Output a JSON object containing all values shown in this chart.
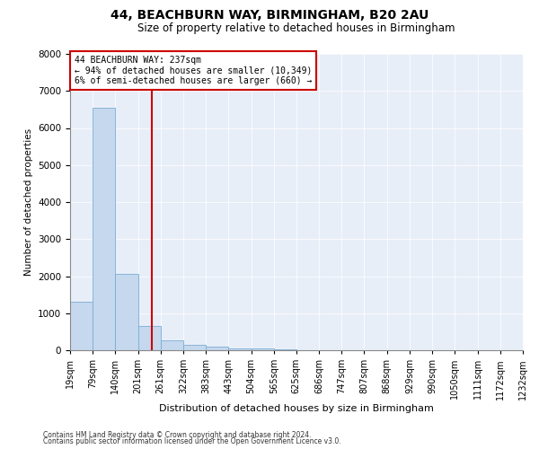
{
  "title": "44, BEACHBURN WAY, BIRMINGHAM, B20 2AU",
  "subtitle": "Size of property relative to detached houses in Birmingham",
  "xlabel": "Distribution of detached houses by size in Birmingham",
  "ylabel": "Number of detached properties",
  "annotation_line1": "44 BEACHBURN WAY: 237sqm",
  "annotation_line2": "← 94% of detached houses are smaller (10,349)",
  "annotation_line3": "6% of semi-detached houses are larger (660) →",
  "footer1": "Contains HM Land Registry data © Crown copyright and database right 2024.",
  "footer2": "Contains public sector information licensed under the Open Government Licence v3.0.",
  "bin_edges": [
    19,
    79,
    140,
    201,
    261,
    322,
    383,
    443,
    504,
    565,
    625,
    686,
    747,
    807,
    868,
    929,
    990,
    1050,
    1111,
    1172,
    1232
  ],
  "bar_heights": [
    1300,
    6550,
    2070,
    650,
    270,
    150,
    100,
    60,
    50,
    20,
    10,
    5,
    3,
    2,
    1,
    1,
    0,
    0,
    0,
    0
  ],
  "bar_color": "#c5d8ed",
  "bar_edge_color": "#7aaed6",
  "property_size": 237,
  "vline_color": "#cc0000",
  "background_color": "#e8eef8",
  "ylim": [
    0,
    8000
  ],
  "annotation_box_color": "#cc0000",
  "title_fontsize": 10,
  "subtitle_fontsize": 8.5,
  "xlabel_fontsize": 8,
  "ylabel_fontsize": 7.5,
  "tick_fontsize": 7,
  "ytick_fontsize": 7.5,
  "footer_fontsize": 5.5,
  "annot_fontsize": 7
}
